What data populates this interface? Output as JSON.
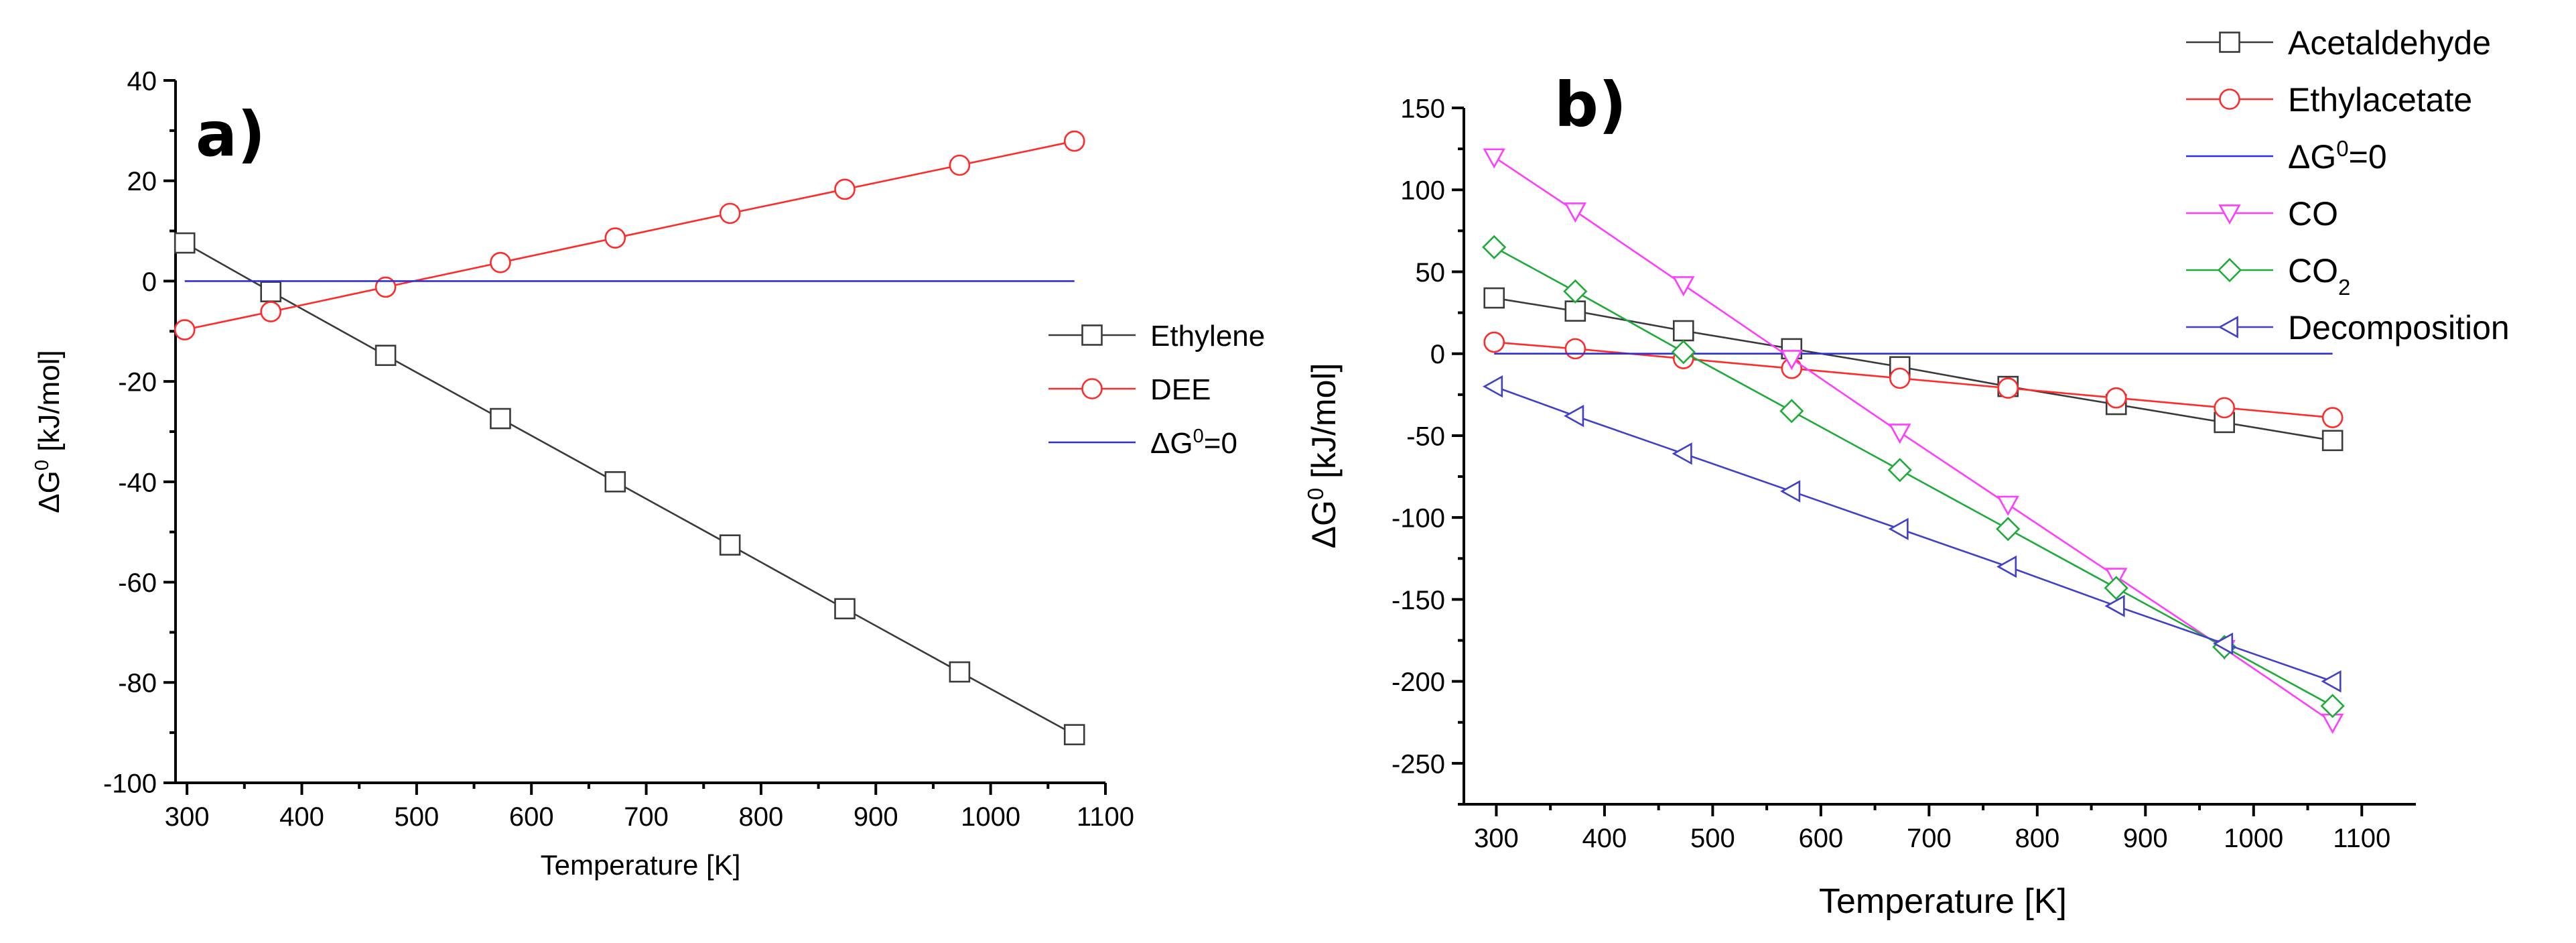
{
  "chart_data": [
    {
      "type": "line",
      "panel_label": "a)",
      "xlabel": "Temperature [K]",
      "ylabel": {
        "prefix": "ΔG",
        "sup": "0",
        "suffix": " [kJ/mol]"
      },
      "xlim": [
        290,
        1100
      ],
      "ylim": [
        -100,
        40
      ],
      "xticks": [
        300,
        400,
        500,
        600,
        700,
        800,
        900,
        1000,
        1100
      ],
      "yticks": [
        -100,
        -80,
        -60,
        -40,
        -20,
        0,
        20,
        40
      ],
      "legend_position": "right-center",
      "series": [
        {
          "name": "Ethylene",
          "color": "#3a3a3a",
          "marker": "square",
          "x": [
            298,
            373,
            473,
            573,
            673,
            773,
            873,
            973,
            1073
          ],
          "y": [
            7.6,
            -2.1,
            -14.8,
            -27.4,
            -40.0,
            -52.6,
            -65.3,
            -77.9,
            -90.4
          ]
        },
        {
          "name": "DEE",
          "color": "#ff2a2a",
          "marker": "circle",
          "x": [
            298,
            373,
            473,
            573,
            673,
            773,
            873,
            973,
            1073
          ],
          "y": [
            -9.7,
            -6.1,
            -1.2,
            3.7,
            8.6,
            13.5,
            18.3,
            23.1,
            27.9
          ]
        },
        {
          "name": "ΔG0=0",
          "label": {
            "prefix": "ΔG",
            "sup": "0",
            "suffix": "=0"
          },
          "color": "#2f2fd8",
          "marker": "none",
          "x": [
            298,
            1073
          ],
          "y": [
            0,
            0
          ]
        }
      ]
    },
    {
      "type": "line",
      "panel_label": "b)",
      "xlabel": "Temperature [K]",
      "ylabel": {
        "prefix": "ΔG",
        "sup": "0",
        "suffix": " [kJ/mol]"
      },
      "xlim": [
        270,
        1150
      ],
      "ylim": [
        -275,
        150
      ],
      "xticks": [
        300,
        400,
        500,
        600,
        700,
        800,
        900,
        1000,
        1100
      ],
      "yticks": [
        -250,
        -200,
        -150,
        -100,
        -50,
        0,
        50,
        100,
        150
      ],
      "legend_position": "top-right",
      "series": [
        {
          "name": "Acetaldehyde",
          "color": "#3a3a3a",
          "marker": "square",
          "x": [
            298,
            373,
            473,
            573,
            673,
            773,
            873,
            973,
            1073
          ],
          "y": [
            34,
            26,
            14,
            3,
            -8,
            -20,
            -31,
            -42,
            -53
          ]
        },
        {
          "name": "Ethylacetate",
          "color": "#ff2a2a",
          "marker": "circle",
          "x": [
            298,
            373,
            473,
            573,
            673,
            773,
            873,
            973,
            1073
          ],
          "y": [
            7,
            3,
            -3,
            -9,
            -15,
            -21,
            -27,
            -33,
            -39
          ]
        },
        {
          "name": "ΔG0=0",
          "label": {
            "prefix": "ΔG",
            "sup": "0",
            "suffix": "=0"
          },
          "color": "#2f2fd8",
          "marker": "none",
          "x": [
            298,
            1073
          ],
          "y": [
            0,
            0
          ]
        },
        {
          "name": "CO",
          "color": "#ff3dff",
          "marker": "triangle-down",
          "x": [
            298,
            373,
            473,
            573,
            673,
            773,
            873,
            973,
            1073
          ],
          "y": [
            120,
            87,
            42,
            -3,
            -48,
            -92,
            -136,
            -180,
            -225
          ]
        },
        {
          "name": "CO2",
          "label": {
            "prefix": "CO",
            "sub": "2",
            "suffix": ""
          },
          "color": "#1faa3c",
          "marker": "diamond",
          "x": [
            298,
            373,
            473,
            573,
            673,
            773,
            873,
            973,
            1073
          ],
          "y": [
            65,
            38,
            1,
            -35,
            -71,
            -107,
            -143,
            -179,
            -215
          ]
        },
        {
          "name": "Decomposition",
          "color": "#4040c8",
          "marker": "triangle-left",
          "x": [
            298,
            373,
            473,
            573,
            673,
            773,
            873,
            973,
            1073
          ],
          "y": [
            -20,
            -38,
            -61,
            -84,
            -107,
            -130,
            -154,
            -177,
            -200
          ]
        }
      ]
    }
  ]
}
